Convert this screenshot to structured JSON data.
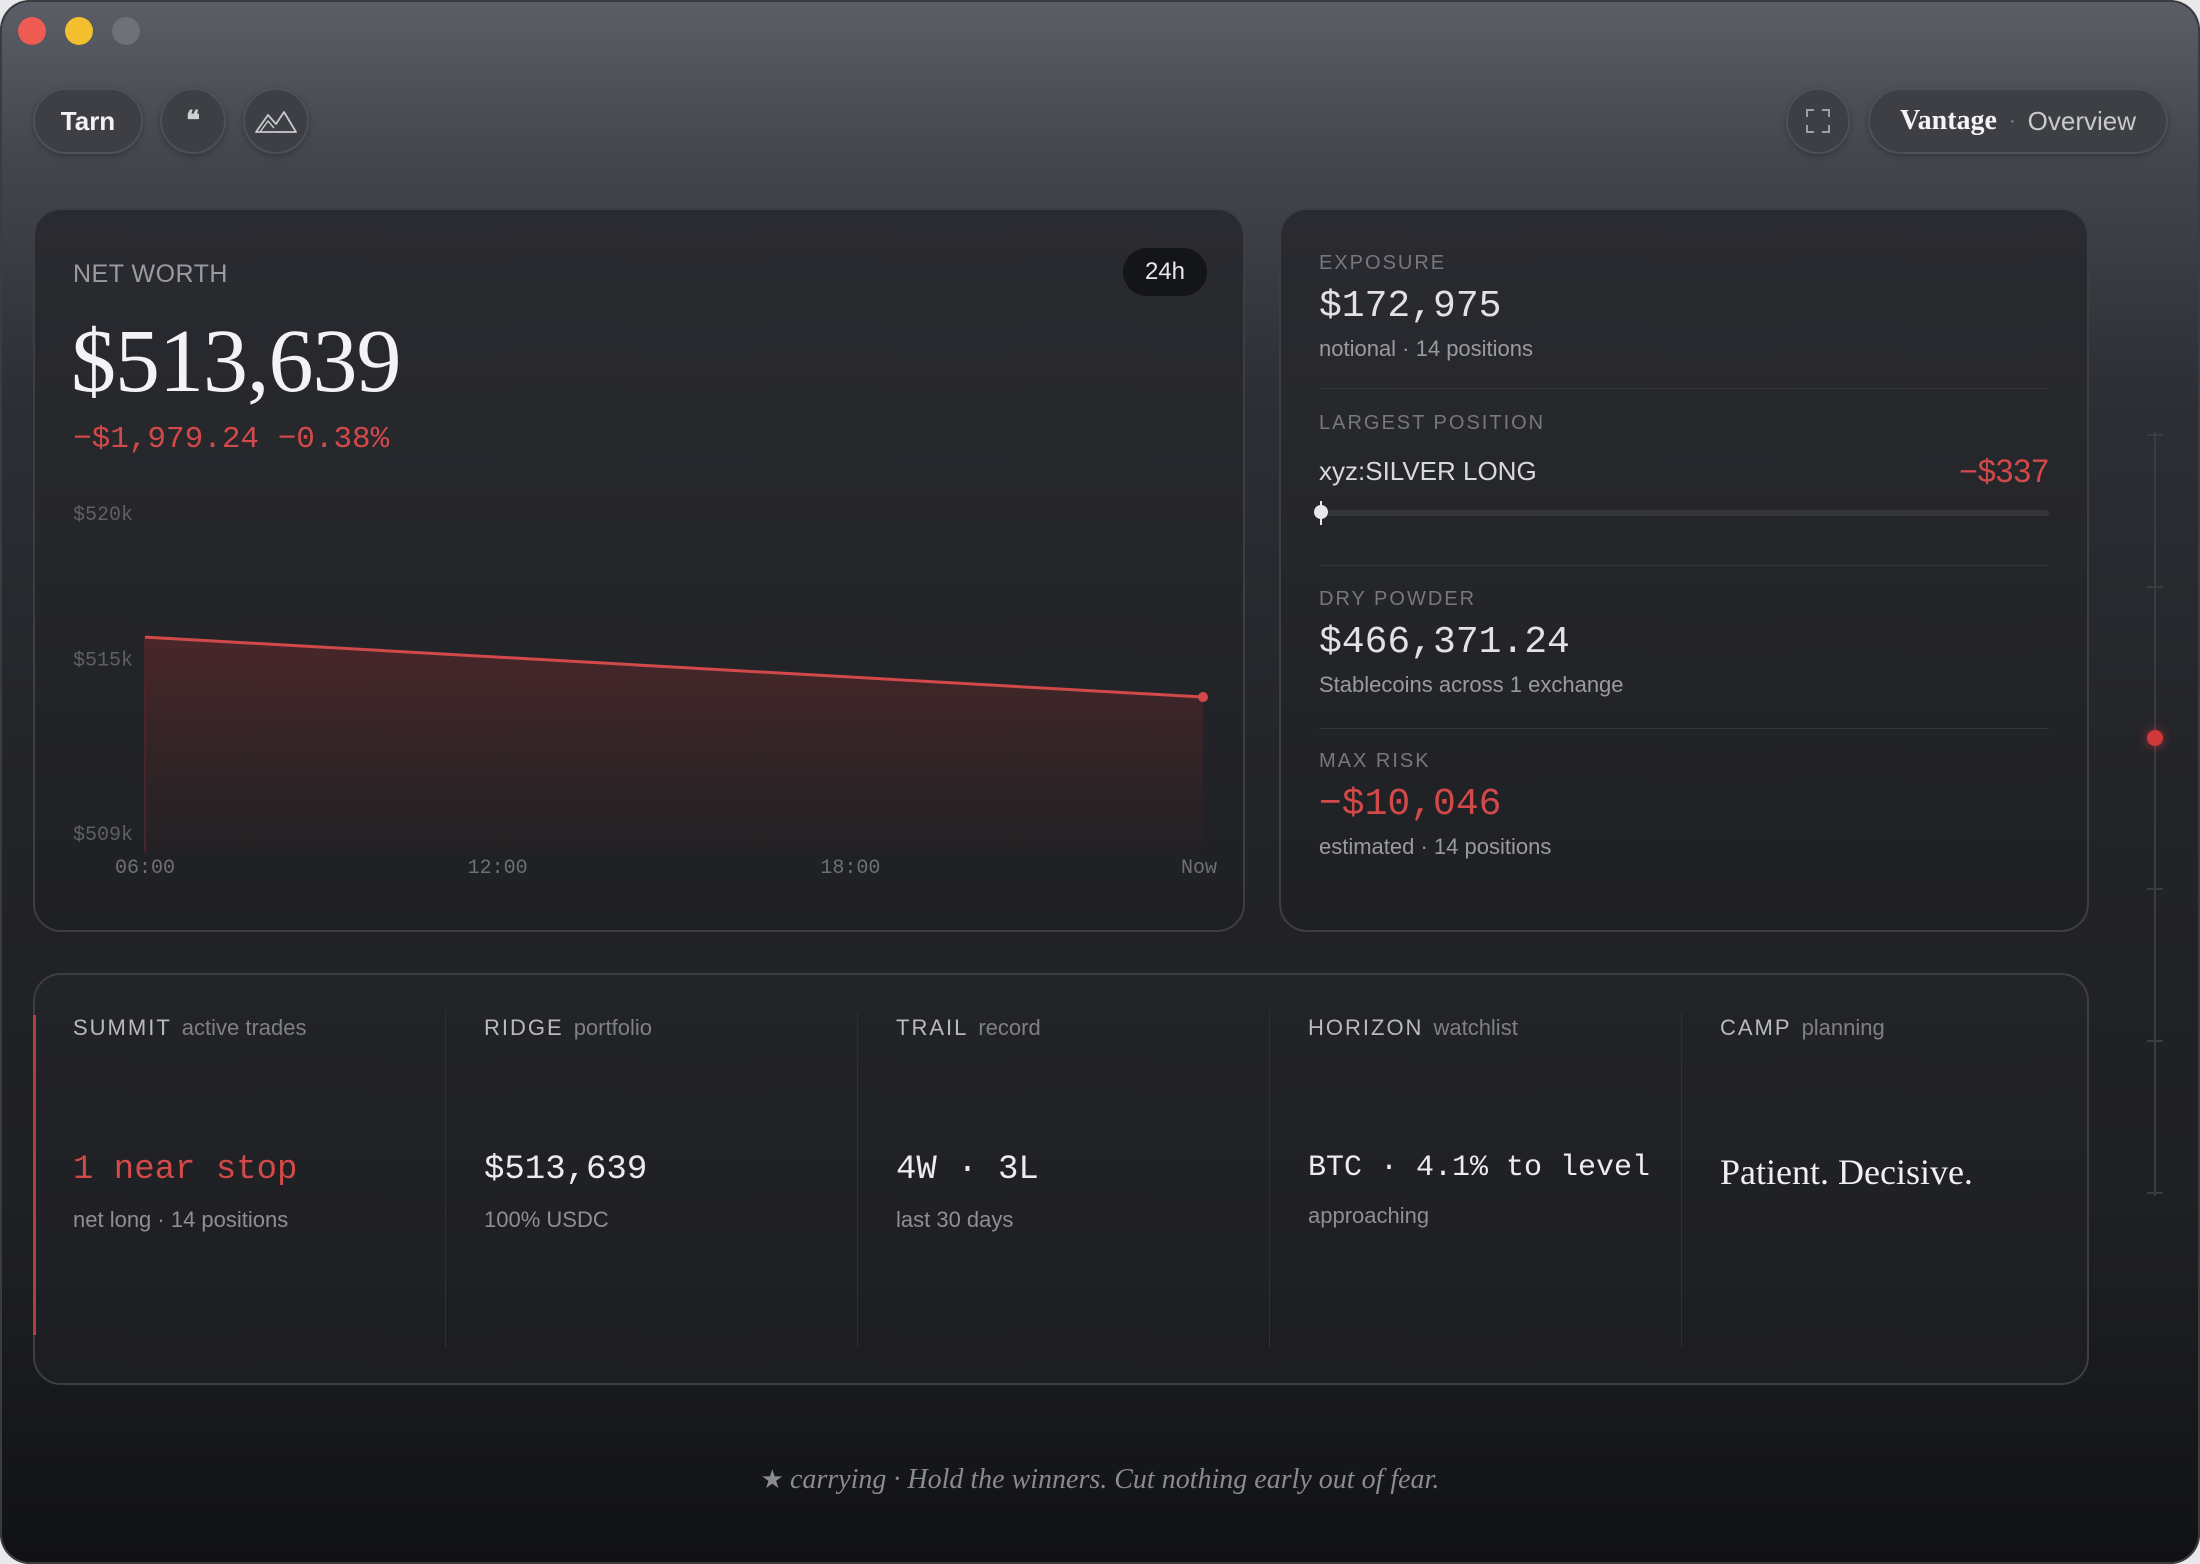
{
  "window": {
    "controls": [
      "close",
      "minimize",
      "zoom"
    ]
  },
  "toolbar": {
    "tarn_label": "Tarn",
    "quote_glyph": "❝",
    "vantage_brand": "Vantage",
    "vantage_sep": "·",
    "vantage_page": "Overview"
  },
  "networth": {
    "label": "NET WORTH",
    "range": "24h",
    "value": "$513,639",
    "change": "−$1,979.24 −0.38%"
  },
  "chart_data": {
    "type": "area",
    "x": [
      "06:00",
      "Now"
    ],
    "xticks": [
      "06:00",
      "12:00",
      "18:00",
      "Now"
    ],
    "series": [
      {
        "values": [
          515700,
          513639
        ],
        "color": "#d2494a"
      }
    ],
    "ylim": [
      509000,
      520000
    ],
    "yticks": [
      {
        "value": 520000,
        "label": "$520k"
      },
      {
        "value": 515000,
        "label": "$515k"
      },
      {
        "value": 509000,
        "label": "$509k"
      }
    ],
    "grid": false
  },
  "exposure": {
    "exposure_label": "EXPOSURE",
    "exposure_value": "$172,975",
    "exposure_sub": "notional · 14 positions",
    "largest_label": "LARGEST POSITION",
    "largest_name": "xyz:SILVER LONG",
    "largest_pnl": "−$337",
    "largest_fill": 0.0,
    "dry_label": "DRY POWDER",
    "dry_value": "$466,371.24",
    "dry_sub": "Stablecoins across 1 exchange",
    "risk_label": "MAX RISK",
    "risk_value": "−$10,046",
    "risk_sub": "estimated · 14 positions"
  },
  "bottom": {
    "columns": [
      {
        "title": "SUMMIT",
        "sub": "active trades",
        "value": "1 near stop",
        "note": "net long · 14 positions"
      },
      {
        "title": "RIDGE",
        "sub": "portfolio",
        "value": "$513,639",
        "note": "100% USDC"
      },
      {
        "title": "TRAIL",
        "sub": "record",
        "value": "4W · 3L",
        "note": "last 30 days"
      },
      {
        "title": "HORIZON",
        "sub": "watchlist",
        "value": "BTC · 4.1% to level",
        "note": "approaching"
      },
      {
        "title": "CAMP",
        "sub": "planning",
        "value": "Patient. Decisive.",
        "note": ""
      }
    ]
  },
  "footer": {
    "star": "★",
    "text": "carrying · Hold the winners. Cut nothing early out of fear."
  },
  "colors": {
    "accent_red": "#d2494a",
    "background": "#1e1f22"
  }
}
